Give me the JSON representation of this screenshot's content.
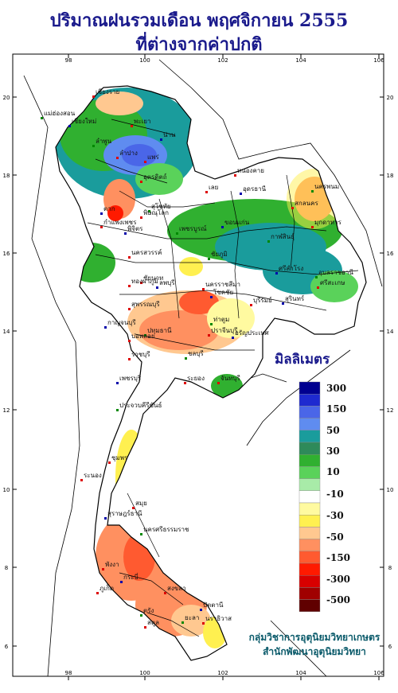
{
  "title_line1": "ปริมาณฝนรวมเดือน  พฤศจิกายน 2555",
  "title_line2": "ที่ต่างจากค่าปกติ",
  "legend": {
    "title": "มิลลิเมตร",
    "swatches": [
      "#000090",
      "#1e2ad0",
      "#4a66e8",
      "#5f8cf0",
      "#1a9c9c",
      "#2e8a5a",
      "#30b030",
      "#5ad25a",
      "#a8eba8",
      "#ffffff",
      "#fffaa0",
      "#fff050",
      "#ffc890",
      "#ff9060",
      "#ff5a30",
      "#ff1a00",
      "#d80000",
      "#a00000",
      "#600000"
    ],
    "labels": [
      "300",
      "150",
      "50",
      "30",
      "10",
      "-10",
      "-30",
      "-50",
      "-150",
      "-300",
      "-500"
    ]
  },
  "axes": {
    "x_ticks": [
      "98",
      "100",
      "102",
      "104",
      "106"
    ],
    "y_ticks": [
      "20",
      "18",
      "16",
      "14",
      "12",
      "10",
      "8",
      "6"
    ]
  },
  "place_labels": [
    "เชียงราย",
    "เชียงใหม่",
    "แม่ฮ่องสอน",
    "พะเยา",
    "ลำปาง",
    "น่าน",
    "ลำพูน",
    "แพร่",
    "อุตรดิตถ์",
    "ตาก",
    "สุโขทัย",
    "พิษณุโลก",
    "กำแพงเพชร",
    "พิจิตร",
    "เพชรบูรณ์",
    "เลย",
    "หนองคาย",
    "อุดรธานี",
    "นครพนม",
    "สกลนคร",
    "มุกดาหาร",
    "ขอนแก่น",
    "กาฬสินธุ์",
    "นครสวรรค์",
    "ชัยนาท",
    "ลพบุรี",
    "ชัยภูมิ",
    "นครราชสีมา",
    "บุรีรัมย์",
    "สุรินทร์",
    "อุบลราชธานี",
    "ศรีสะเกษ",
    "สุพรรณบุรี",
    "กาญจนบุรี",
    "ปทุมธานี",
    "ราชบุรี",
    "ปราจีนบุรี",
    "อรัญประเทศ",
    "ชลบุรี",
    "ระยอง",
    "จันทบุรี",
    "เพชรบุรี",
    "ประจวบคีรีขันธ์",
    "ชุมพร",
    "ระนอง",
    "สุราษฎร์ธานี",
    "นครศรีธรรมราช",
    "พังงา",
    "ภูเก็ต",
    "กระบี่",
    "ตรัง",
    "สงขลา",
    "สตูล",
    "ปัตตานี",
    "ยะลา",
    "นราธิวาส",
    "สมุย",
    "โชคชัย",
    "ท่าตูม",
    "บ่อพลอย",
    "ทองผาภูมิ",
    "ศรีสำโรง"
  ],
  "credit_line1": "กลุ่มวิชาการอุตุนิยมวิทยาเกษตร",
  "credit_line2": "สำนักพัฒนาอุตุนิยมวิทยา"
}
